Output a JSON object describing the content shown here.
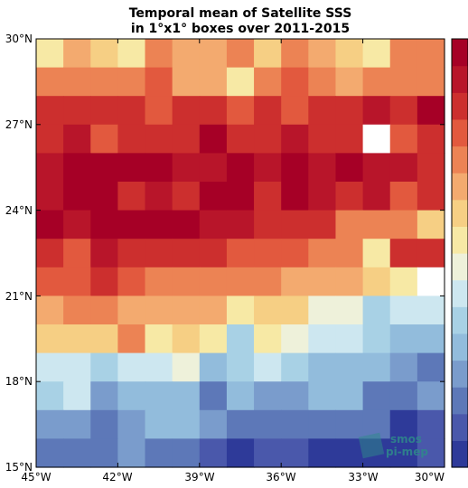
{
  "chart_data": {
    "type": "heatmap",
    "title_lines": [
      "Temporal mean of Satellite SSS",
      "in 1°x1° boxes over 2011-2015"
    ],
    "x_tick_labels": [
      "45°W",
      "42°W",
      "39°W",
      "36°W",
      "33°W",
      "30°W"
    ],
    "y_tick_labels": [
      "30°N",
      "27°N",
      "24°N",
      "21°N",
      "18°N",
      "15°N"
    ],
    "xlim": [
      -45,
      -30
    ],
    "ylim": [
      15,
      30
    ],
    "grid": false,
    "colorbar_position": "right",
    "palette": [
      "#2e3a99",
      "#4a58ab",
      "#5d78b8",
      "#7a9ccc",
      "#92bcdc",
      "#a8d1e5",
      "#cde7f0",
      "#eef1da",
      "#f7e9a5",
      "#f6cf84",
      "#f3aa6f",
      "#ec8354",
      "#e2593e",
      "#cc2f2e",
      "#b8152a",
      "#a60026"
    ],
    "values": [
      [
        8,
        10,
        9,
        8,
        11,
        10,
        10,
        11,
        9,
        11,
        10,
        9,
        8,
        11,
        11
      ],
      [
        11,
        11,
        11,
        11,
        12,
        10,
        10,
        8,
        11,
        12,
        11,
        10,
        11,
        11,
        11
      ],
      [
        13,
        13,
        13,
        13,
        12,
        13,
        13,
        12,
        13,
        12,
        13,
        13,
        14,
        13,
        15
      ],
      [
        13,
        14,
        12,
        13,
        13,
        13,
        15,
        13,
        13,
        14,
        13,
        13,
        null,
        12,
        13
      ],
      [
        14,
        15,
        15,
        15,
        15,
        14,
        14,
        15,
        14,
        15,
        14,
        15,
        14,
        14,
        13
      ],
      [
        14,
        15,
        15,
        13,
        14,
        13,
        15,
        15,
        13,
        15,
        14,
        13,
        14,
        12,
        13
      ],
      [
        15,
        14,
        15,
        15,
        15,
        15,
        14,
        14,
        13,
        13,
        13,
        11,
        11,
        11,
        9
      ],
      [
        13,
        12,
        14,
        13,
        13,
        13,
        13,
        12,
        12,
        12,
        11,
        11,
        8,
        13,
        13
      ],
      [
        12,
        12,
        13,
        12,
        11,
        11,
        11,
        11,
        11,
        10,
        10,
        10,
        9,
        8,
        null
      ],
      [
        10,
        11,
        11,
        10,
        10,
        10,
        10,
        8,
        9,
        9,
        7,
        7,
        5,
        6,
        6
      ],
      [
        9,
        9,
        9,
        11,
        8,
        9,
        8,
        5,
        8,
        7,
        6,
        6,
        5,
        4,
        4
      ],
      [
        6,
        6,
        5,
        6,
        6,
        7,
        4,
        5,
        6,
        5,
        4,
        4,
        4,
        3,
        2
      ],
      [
        5,
        6,
        3,
        4,
        4,
        4,
        2,
        4,
        3,
        3,
        4,
        4,
        2,
        2,
        3
      ],
      [
        3,
        3,
        2,
        3,
        4,
        4,
        3,
        2,
        2,
        2,
        2,
        2,
        2,
        0,
        1
      ],
      [
        2,
        2,
        2,
        3,
        2,
        2,
        1,
        0,
        1,
        1,
        0,
        0,
        0,
        0,
        1
      ]
    ],
    "watermark_lines": [
      "smos",
      "pi-mep"
    ],
    "colors": {
      "missing": "#ffffff",
      "frame": "#000000",
      "watermark": "#2e8a8a"
    }
  }
}
